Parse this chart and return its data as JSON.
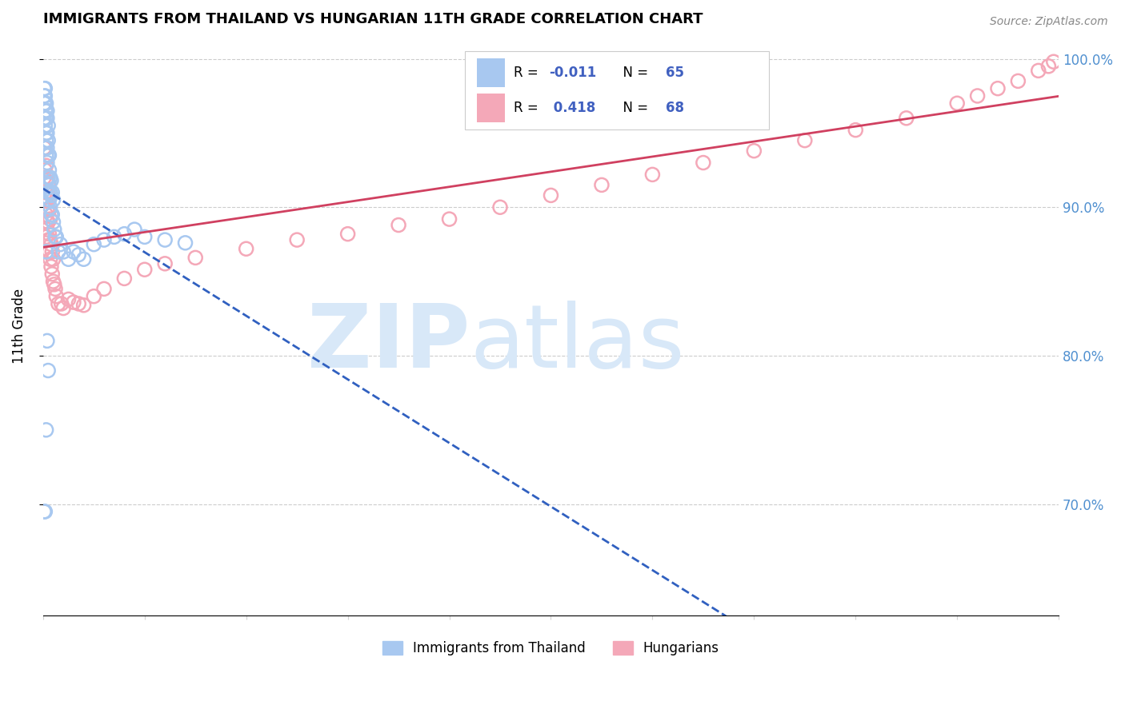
{
  "title": "IMMIGRANTS FROM THAILAND VS HUNGARIAN 11TH GRADE CORRELATION CHART",
  "source": "Source: ZipAtlas.com",
  "ylabel": "11th Grade",
  "thailand_color": "#a8c8f0",
  "hungarian_color": "#f4a8b8",
  "trend_thai_color": "#3060c0",
  "trend_hun_color": "#d04060",
  "r_value_color": "#4060c0",
  "n_value_color": "#4060c0",
  "watermark_color": "#d8e8f8",
  "ytick_color": "#5090d0",
  "xlim": [
    0.0,
    1.0
  ],
  "ylim": [
    0.625,
    1.015
  ],
  "ytick_positions": [
    0.7,
    0.8,
    0.9,
    1.0
  ],
  "ytick_labels": [
    "70.0%",
    "80.0%",
    "90.0%",
    "100.0%"
  ],
  "thai_x": [
    0.001,
    0.001,
    0.001,
    0.001,
    0.002,
    0.002,
    0.002,
    0.002,
    0.002,
    0.003,
    0.003,
    0.003,
    0.003,
    0.003,
    0.003,
    0.004,
    0.004,
    0.004,
    0.004,
    0.004,
    0.004,
    0.005,
    0.005,
    0.005,
    0.005,
    0.005,
    0.006,
    0.006,
    0.006,
    0.006,
    0.007,
    0.007,
    0.007,
    0.008,
    0.008,
    0.008,
    0.009,
    0.009,
    0.01,
    0.01,
    0.011,
    0.012,
    0.013,
    0.015,
    0.017,
    0.02,
    0.025,
    0.03,
    0.035,
    0.04,
    0.05,
    0.06,
    0.07,
    0.08,
    0.09,
    0.1,
    0.12,
    0.14,
    0.002,
    0.003,
    0.004,
    0.005,
    0.001,
    0.002,
    0.003
  ],
  "thai_y": [
    0.96,
    0.97,
    0.975,
    0.98,
    0.955,
    0.965,
    0.97,
    0.975,
    0.98,
    0.935,
    0.945,
    0.95,
    0.96,
    0.965,
    0.97,
    0.92,
    0.93,
    0.94,
    0.95,
    0.96,
    0.965,
    0.91,
    0.92,
    0.935,
    0.945,
    0.955,
    0.905,
    0.915,
    0.925,
    0.935,
    0.9,
    0.91,
    0.92,
    0.895,
    0.908,
    0.918,
    0.895,
    0.91,
    0.89,
    0.905,
    0.885,
    0.88,
    0.88,
    0.87,
    0.875,
    0.87,
    0.865,
    0.87,
    0.868,
    0.865,
    0.875,
    0.878,
    0.88,
    0.882,
    0.885,
    0.88,
    0.878,
    0.876,
    0.94,
    0.87,
    0.81,
    0.79,
    0.695,
    0.695,
    0.75
  ],
  "hun_x": [
    0.001,
    0.001,
    0.002,
    0.002,
    0.002,
    0.003,
    0.003,
    0.003,
    0.003,
    0.004,
    0.004,
    0.004,
    0.004,
    0.005,
    0.005,
    0.005,
    0.005,
    0.006,
    0.006,
    0.006,
    0.007,
    0.007,
    0.007,
    0.008,
    0.008,
    0.009,
    0.009,
    0.01,
    0.01,
    0.011,
    0.012,
    0.013,
    0.015,
    0.018,
    0.02,
    0.025,
    0.03,
    0.035,
    0.04,
    0.05,
    0.06,
    0.08,
    0.1,
    0.12,
    0.15,
    0.2,
    0.25,
    0.3,
    0.35,
    0.4,
    0.45,
    0.5,
    0.55,
    0.6,
    0.65,
    0.7,
    0.75,
    0.8,
    0.85,
    0.9,
    0.92,
    0.94,
    0.96,
    0.98,
    0.99,
    0.995,
    0.003,
    0.004
  ],
  "hun_y": [
    0.92,
    0.94,
    0.91,
    0.925,
    0.94,
    0.895,
    0.905,
    0.918,
    0.928,
    0.885,
    0.898,
    0.91,
    0.92,
    0.878,
    0.89,
    0.905,
    0.915,
    0.87,
    0.882,
    0.898,
    0.865,
    0.878,
    0.892,
    0.86,
    0.875,
    0.855,
    0.87,
    0.85,
    0.865,
    0.848,
    0.845,
    0.84,
    0.835,
    0.835,
    0.832,
    0.838,
    0.836,
    0.835,
    0.834,
    0.84,
    0.845,
    0.852,
    0.858,
    0.862,
    0.866,
    0.872,
    0.878,
    0.882,
    0.888,
    0.892,
    0.9,
    0.908,
    0.915,
    0.922,
    0.93,
    0.938,
    0.945,
    0.952,
    0.96,
    0.97,
    0.975,
    0.98,
    0.985,
    0.992,
    0.995,
    0.998,
    0.88,
    0.89
  ]
}
